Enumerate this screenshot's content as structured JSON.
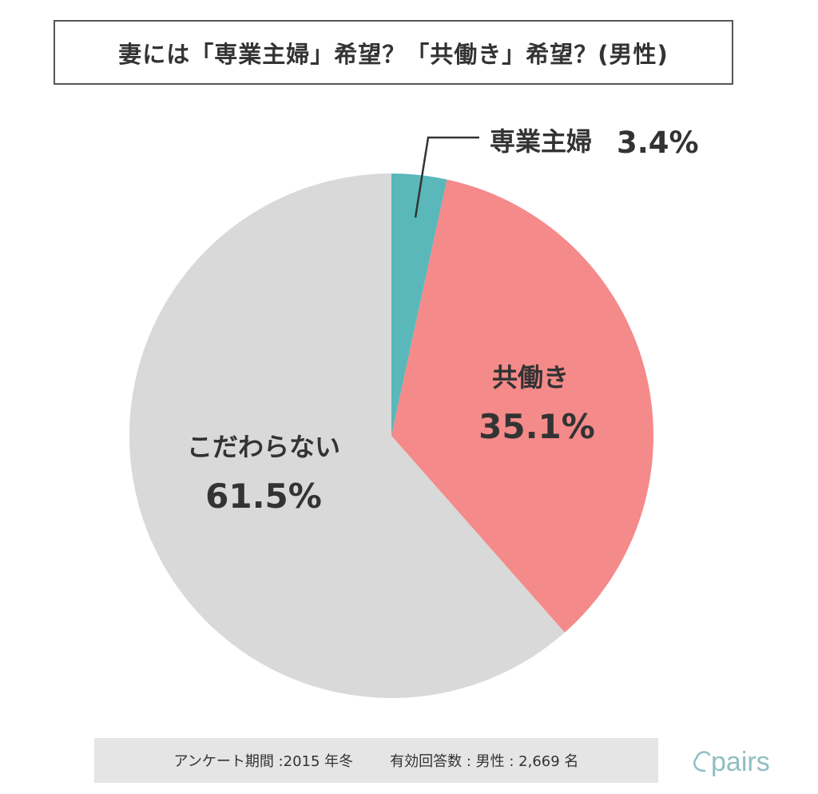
{
  "title": "妻には「専業主婦」希望？「共働き」希望？(男性)",
  "chart_data": {
    "type": "pie",
    "slices": [
      {
        "label": "専業主婦",
        "value": 3.4,
        "value_label": "3.4%",
        "color": "#5ab8bb"
      },
      {
        "label": "共働き",
        "value": 35.1,
        "value_label": "35.1%",
        "color": "#f48a89"
      },
      {
        "label": "こだわらない",
        "value": 61.5,
        "value_label": "61.5%",
        "color": "#d9d9d9"
      }
    ],
    "start": "top",
    "direction": "clockwise"
  },
  "footer": {
    "period": "アンケート期間 :2015 年冬",
    "respondents": "有効回答数 : 男性 : 2,669 名"
  },
  "logo": {
    "text": "pairs",
    "color": "#8fbfc3"
  }
}
